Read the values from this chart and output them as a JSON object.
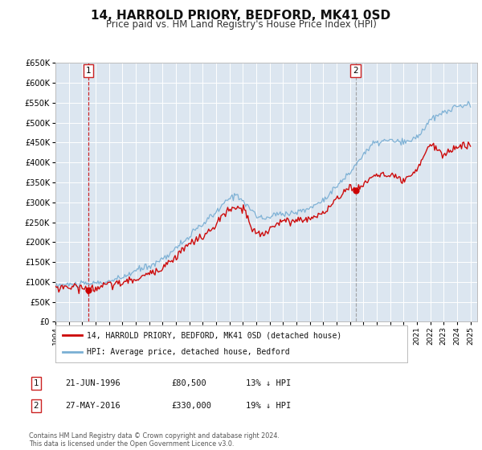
{
  "title": "14, HARROLD PRIORY, BEDFORD, MK41 0SD",
  "subtitle": "Price paid vs. HM Land Registry's House Price Index (HPI)",
  "title_fontsize": 11,
  "subtitle_fontsize": 8.5,
  "plot_bg_color": "#dce6f0",
  "fig_bg_color": "#ffffff",
  "ylim": [
    0,
    650000
  ],
  "yticks": [
    0,
    50000,
    100000,
    150000,
    200000,
    250000,
    300000,
    350000,
    400000,
    450000,
    500000,
    550000,
    600000,
    650000
  ],
  "xlim_start": 1994.0,
  "xlim_end": 2025.5,
  "xticks": [
    1994,
    1995,
    1996,
    1997,
    1998,
    1999,
    2000,
    2001,
    2002,
    2003,
    2004,
    2005,
    2006,
    2007,
    2008,
    2009,
    2010,
    2011,
    2012,
    2013,
    2014,
    2015,
    2016,
    2017,
    2018,
    2019,
    2020,
    2021,
    2022,
    2023,
    2024,
    2025
  ],
  "red_line_color": "#cc0000",
  "blue_line_color": "#7aafd4",
  "marker1_x": 1996.47,
  "marker1_y": 80500,
  "marker2_x": 2016.41,
  "marker2_y": 330000,
  "vline1_x": 1996.47,
  "vline2_x": 2016.41,
  "legend_label_red": "14, HARROLD PRIORY, BEDFORD, MK41 0SD (detached house)",
  "legend_label_blue": "HPI: Average price, detached house, Bedford",
  "annotation1_label": "1",
  "annotation2_label": "2",
  "table_row1": [
    "1",
    "21-JUN-1996",
    "£80,500",
    "13% ↓ HPI"
  ],
  "table_row2": [
    "2",
    "27-MAY-2016",
    "£330,000",
    "19% ↓ HPI"
  ],
  "footer_text": "Contains HM Land Registry data © Crown copyright and database right 2024.\nThis data is licensed under the Open Government Licence v3.0."
}
